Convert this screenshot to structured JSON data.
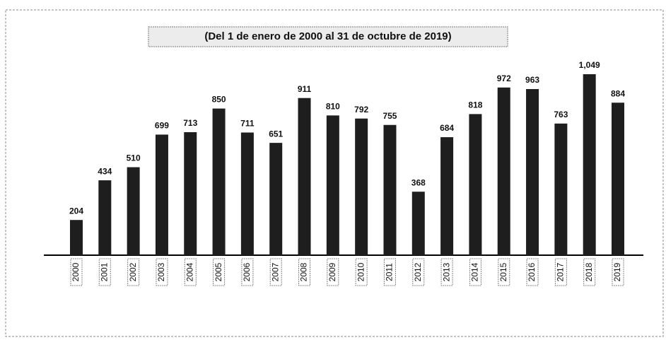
{
  "chart_data": {
    "type": "bar",
    "title": "(Del 1 de enero de 2000 al 31 de octubre de 2019)",
    "categories": [
      "2000",
      "2001",
      "2002",
      "2003",
      "2004",
      "2005",
      "2006",
      "2007",
      "2008",
      "2009",
      "2010",
      "2011",
      "2012",
      "2013",
      "2014",
      "2015",
      "2016",
      "2017",
      "2018",
      "2019"
    ],
    "values": [
      204,
      434,
      510,
      699,
      713,
      850,
      711,
      651,
      911,
      810,
      792,
      755,
      368,
      684,
      818,
      972,
      963,
      763,
      1049,
      884
    ],
    "value_labels": [
      "204",
      "434",
      "510",
      "699",
      "713",
      "850",
      "711",
      "651",
      "911",
      "810",
      "792",
      "755",
      "368",
      "684",
      "818",
      "972",
      "963",
      "763",
      "1,049",
      "884"
    ],
    "color": "#1e1e1e"
  }
}
